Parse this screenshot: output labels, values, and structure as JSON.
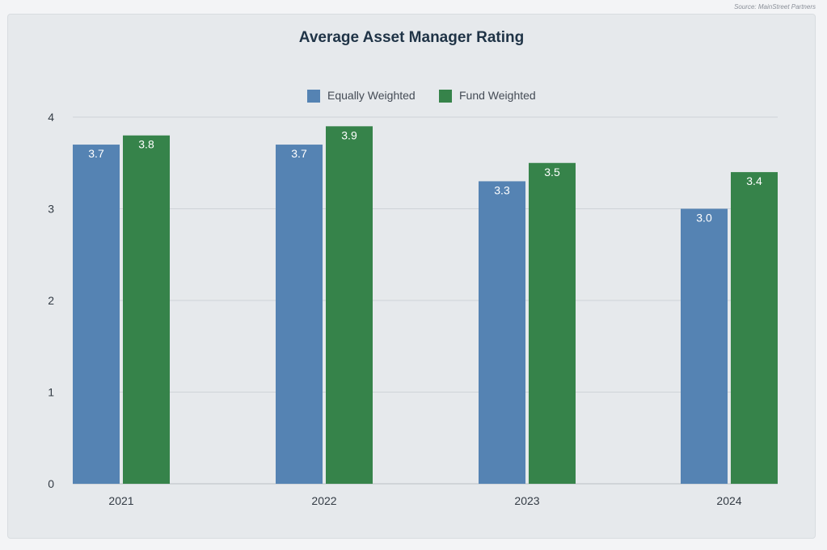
{
  "source_note": "Source: MainStreet Partners",
  "chart_data": {
    "type": "bar",
    "title": "Average Asset Manager Rating",
    "xlabel": "",
    "ylabel": "",
    "categories": [
      "2021",
      "2022",
      "2023",
      "2024"
    ],
    "series": [
      {
        "name": "Equally Weighted",
        "values": [
          3.7,
          3.7,
          3.3,
          3.0
        ],
        "labels": [
          "3.7",
          "3.7",
          "3.3",
          "3.0"
        ],
        "color": "#5583b3"
      },
      {
        "name": "Fund Weighted",
        "values": [
          3.8,
          3.9,
          3.5,
          3.4
        ],
        "labels": [
          "3.8",
          "3.9",
          "3.5",
          "3.4"
        ],
        "color": "#36834a"
      }
    ],
    "ylim": [
      0,
      4
    ],
    "yticks": [
      "0",
      "1",
      "2",
      "3",
      "4"
    ],
    "grid": true,
    "legend_position": "top-center"
  }
}
